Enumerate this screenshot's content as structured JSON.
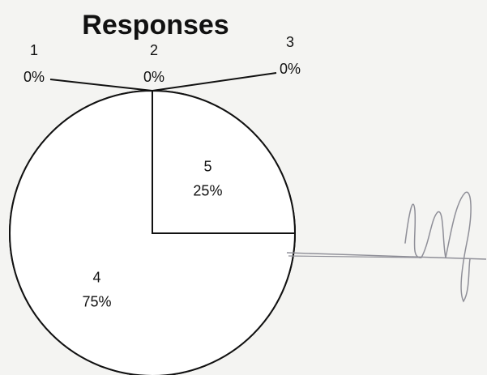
{
  "chart_data": {
    "type": "pie",
    "title": "Responses",
    "categories": [
      "1",
      "2",
      "3",
      "4",
      "5"
    ],
    "values": [
      0,
      0,
      0,
      75,
      25
    ],
    "value_labels": [
      "0%",
      "0%",
      "0%",
      "75%",
      "25%"
    ],
    "legend": "none"
  },
  "colors": {
    "background": "#f4f4f2",
    "ink": "#111111",
    "slice_fill": "#ffffff",
    "signature": "#8f8f98"
  }
}
